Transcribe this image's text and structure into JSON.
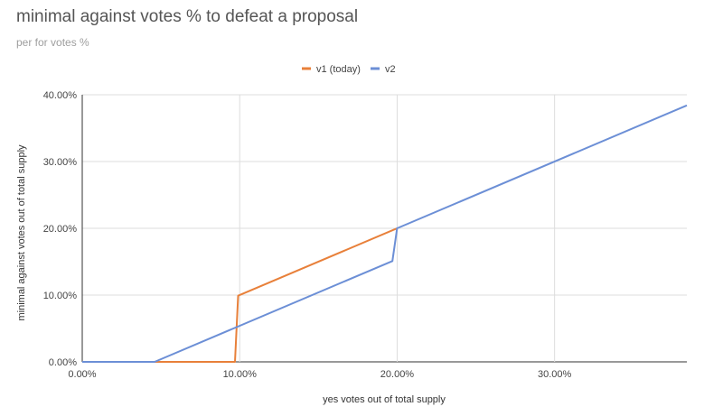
{
  "chart_data": {
    "type": "line",
    "title": "minimal against votes % to defeat a proposal",
    "subtitle": "per for votes %",
    "xlabel": "yes votes out of total supply",
    "ylabel": "minimal against votes out of total supply",
    "xlim": [
      0,
      38.4
    ],
    "ylim": [
      0,
      40
    ],
    "x_ticks": [
      "0.00%",
      "10.00%",
      "20.00%",
      "30.00%"
    ],
    "x_tick_values": [
      0,
      10,
      20,
      30
    ],
    "y_ticks": [
      "0.00%",
      "10.00%",
      "20.00%",
      "30.00%",
      "40.00%"
    ],
    "y_tick_values": [
      0,
      10,
      20,
      30,
      40
    ],
    "grid": true,
    "legend_position": "top",
    "series": [
      {
        "name": "v1 (today)",
        "color": "#e8803a",
        "points": [
          [
            0,
            0
          ],
          [
            9.7,
            0
          ],
          [
            9.9,
            9.9
          ],
          [
            20,
            20
          ]
        ]
      },
      {
        "name": "v2",
        "color": "#6c8fd6",
        "points": [
          [
            0,
            0
          ],
          [
            4.6,
            0
          ],
          [
            19.7,
            15.1
          ],
          [
            20,
            20
          ],
          [
            38.4,
            38.4
          ]
        ]
      }
    ]
  }
}
